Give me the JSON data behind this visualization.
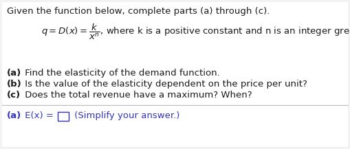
{
  "bg_color": "#f2f2f2",
  "content_bg": "#ffffff",
  "title_text": "Given the function below, complete parts (a) through (c).",
  "fontsize": 9.5,
  "text_color": "#1a1a1a",
  "blue_color": "#3333bb",
  "parts": [
    {
      "bold": "(a)",
      "rest": " Find the elasticity of the demand function."
    },
    {
      "bold": "(b)",
      "rest": " Is the value of the elasticity dependent on the price per unit?"
    },
    {
      "bold": "(c)",
      "rest": " Does the total revenue have a maximum? When?"
    }
  ],
  "answer_bold": "(a)",
  "answer_mid": " E(x) = ",
  "answer_hint": " (Simplify your answer.)",
  "box_color": "#3333bb",
  "hint_color": "#3333bb"
}
